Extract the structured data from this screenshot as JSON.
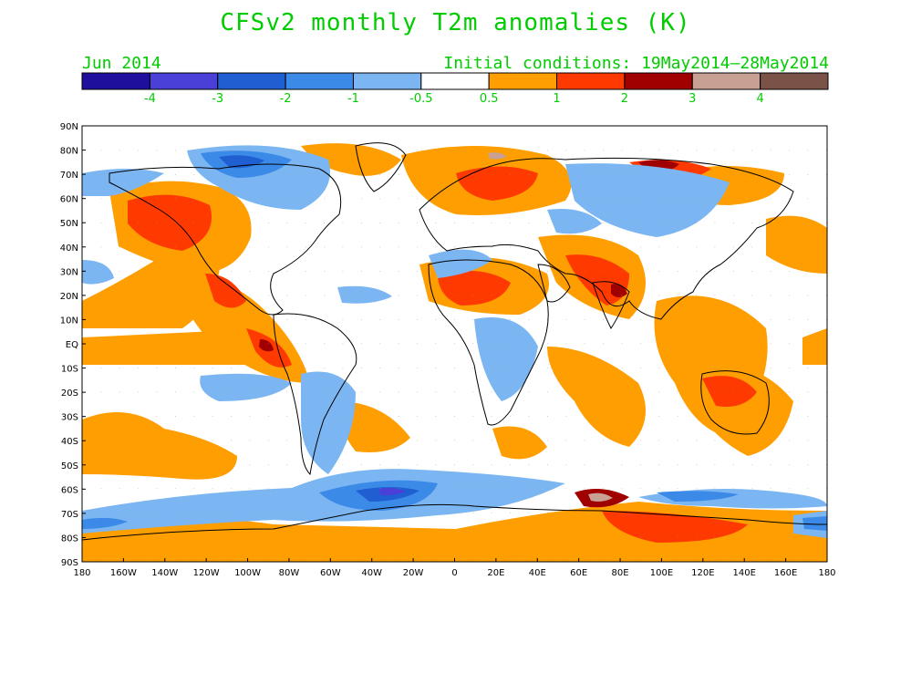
{
  "title": "CFSv2 monthly T2m anomalies (K)",
  "valid_month": "Jun 2014",
  "initial_conditions": "Initial conditions: 19May2014–28May2014",
  "colorbar": {
    "colors": [
      "#1e0f9c",
      "#4a3fd6",
      "#1f5fd1",
      "#3c8ae8",
      "#7bb6f2",
      "#ffffff",
      "#ff9e00",
      "#ff3a00",
      "#a00000",
      "#c8a094",
      "#7a5248"
    ],
    "labels": [
      "-4",
      "-3",
      "-2",
      "-1",
      "-0.5",
      "0.5",
      "1",
      "2",
      "3",
      "4"
    ]
  },
  "map": {
    "lat_labels": [
      "90N",
      "80N",
      "70N",
      "60N",
      "50N",
      "40N",
      "30N",
      "20N",
      "10N",
      "EQ",
      "10S",
      "20S",
      "30S",
      "40S",
      "50S",
      "60S",
      "70S",
      "80S",
      "90S"
    ],
    "lon_labels": [
      "180",
      "160W",
      "140W",
      "120W",
      "100W",
      "80W",
      "60W",
      "40W",
      "20W",
      "0",
      "20E",
      "40E",
      "60E",
      "80E",
      "100E",
      "120E",
      "140E",
      "160E",
      "180"
    ]
  }
}
